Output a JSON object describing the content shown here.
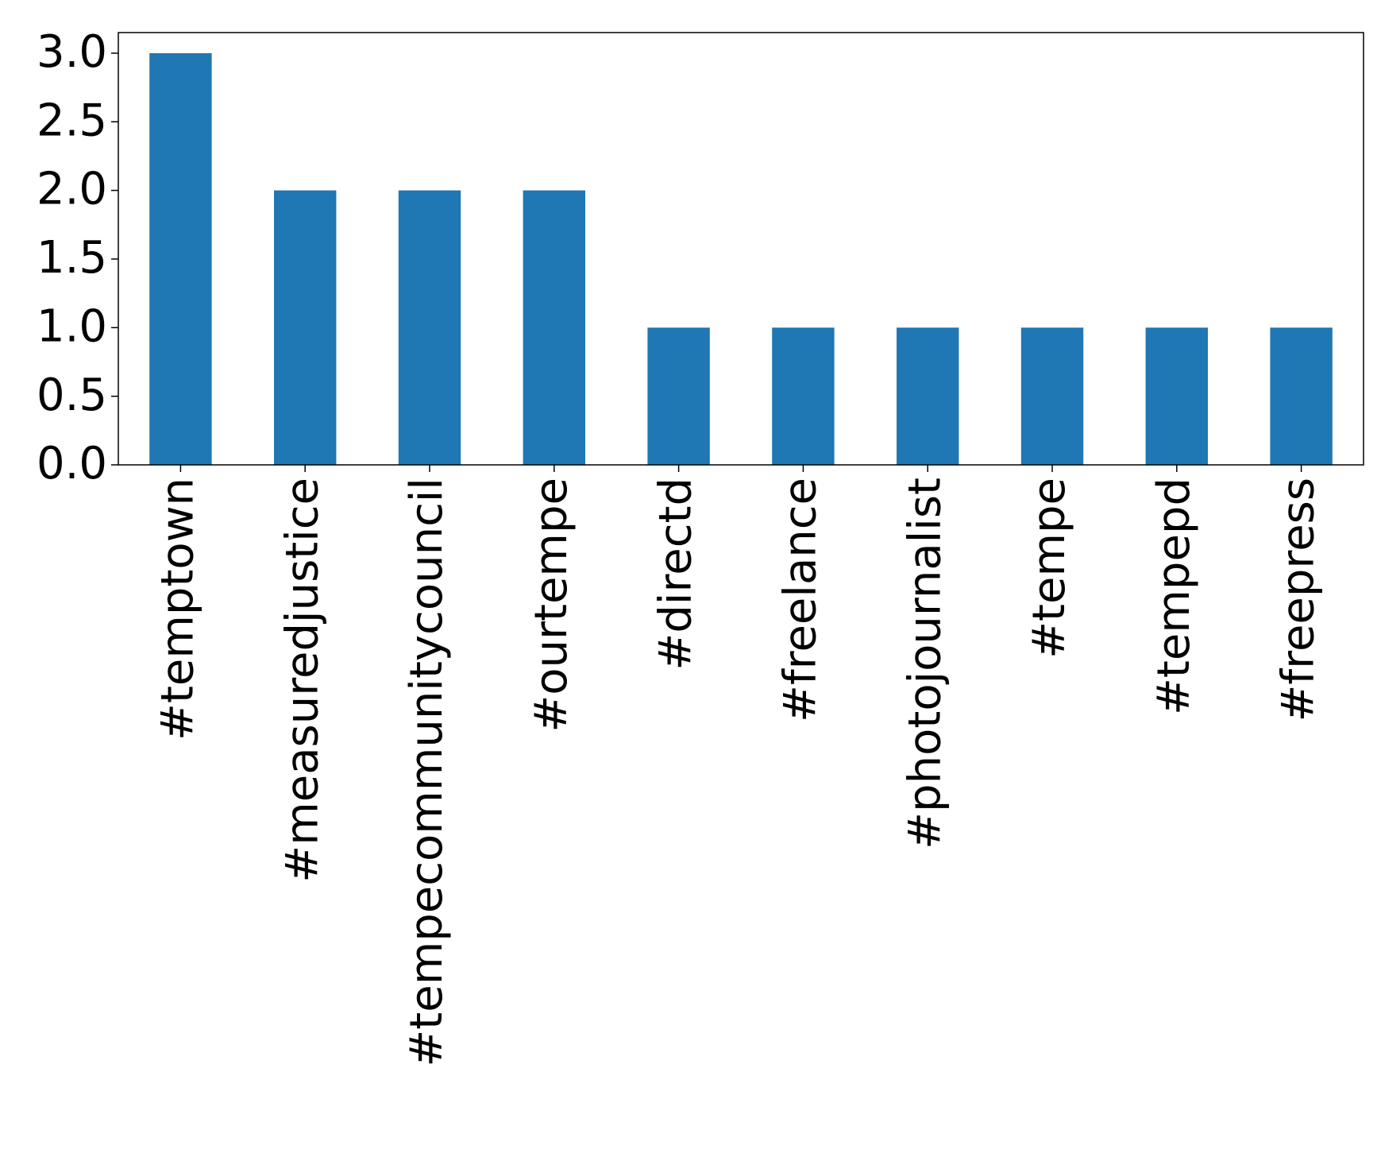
{
  "chart_data": {
    "type": "bar",
    "categories": [
      "#temptown",
      "#measuredjustice",
      "#tempecommunitycouncil",
      "#ourtempe",
      "#directd",
      "#freelance",
      "#photojournalist",
      "#tempe",
      "#tempepd",
      "#freepress"
    ],
    "values": [
      3,
      2,
      2,
      2,
      1,
      1,
      1,
      1,
      1,
      1
    ],
    "color": "#1f77b4",
    "ylim": [
      0,
      3.15
    ],
    "yticks": [
      {
        "value": 0,
        "label": "0.0"
      },
      {
        "value": 0.5,
        "label": "0.5"
      },
      {
        "value": 1,
        "label": "1.0"
      },
      {
        "value": 1.5,
        "label": "1.5"
      },
      {
        "value": 2,
        "label": "2.0"
      },
      {
        "value": 2.5,
        "label": "2.5"
      },
      {
        "value": 3,
        "label": "3.0"
      }
    ],
    "grid": false
  }
}
